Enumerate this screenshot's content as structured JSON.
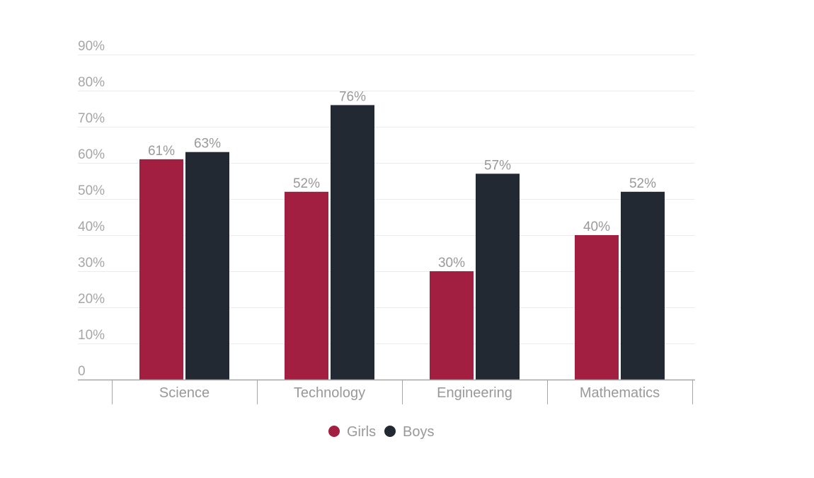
{
  "chart_data": {
    "type": "bar",
    "categories": [
      "Science",
      "Technology",
      "Engineering",
      "Mathematics"
    ],
    "series": [
      {
        "name": "Girls",
        "values": [
          61,
          52,
          30,
          40
        ],
        "color": "#a31f42"
      },
      {
        "name": "Boys",
        "values": [
          63,
          76,
          57,
          52
        ],
        "color": "#232932"
      }
    ],
    "data_labels": [
      [
        "61%",
        "52%",
        "30%",
        "40%"
      ],
      [
        "63%",
        "76%",
        "57%",
        "52%"
      ]
    ],
    "yticks": [
      0,
      10,
      20,
      30,
      40,
      50,
      60,
      70,
      80,
      90
    ],
    "ytick_labels": [
      "0",
      "10%",
      "20%",
      "30%",
      "40%",
      "50%",
      "60%",
      "70%",
      "80%",
      "90%"
    ],
    "ylim": [
      0,
      90
    ],
    "grid": true,
    "legend": "bottom-center",
    "title": "",
    "xlabel": "",
    "ylabel": ""
  }
}
